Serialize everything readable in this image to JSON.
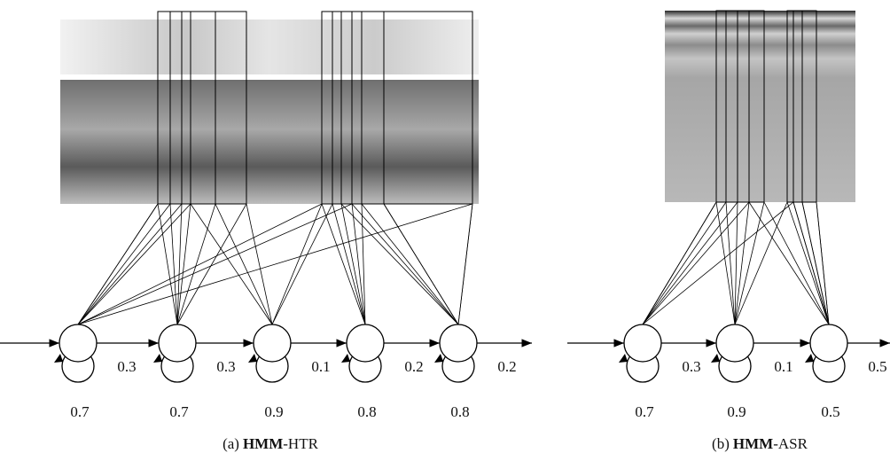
{
  "panels": [
    {
      "states": [
        {
          "self_loop": "0.7",
          "next": "0.3"
        },
        {
          "self_loop": "0.7",
          "next": "0.3"
        },
        {
          "self_loop": "0.9",
          "next": "0.1"
        },
        {
          "self_loop": "0.8",
          "next": "0.2"
        },
        {
          "self_loop": "0.8",
          "next": "0.2"
        }
      ],
      "caption": {
        "label": "(a)",
        "bold": "HMM",
        "suffix": "-HTR"
      }
    },
    {
      "states": [
        {
          "self_loop": "0.7",
          "next": "0.3"
        },
        {
          "self_loop": "0.9",
          "next": "0.1"
        },
        {
          "self_loop": "0.5",
          "next": "0.5"
        }
      ],
      "caption": {
        "label": "(b)",
        "bold": "HMM",
        "suffix": "-ASR"
      }
    }
  ]
}
